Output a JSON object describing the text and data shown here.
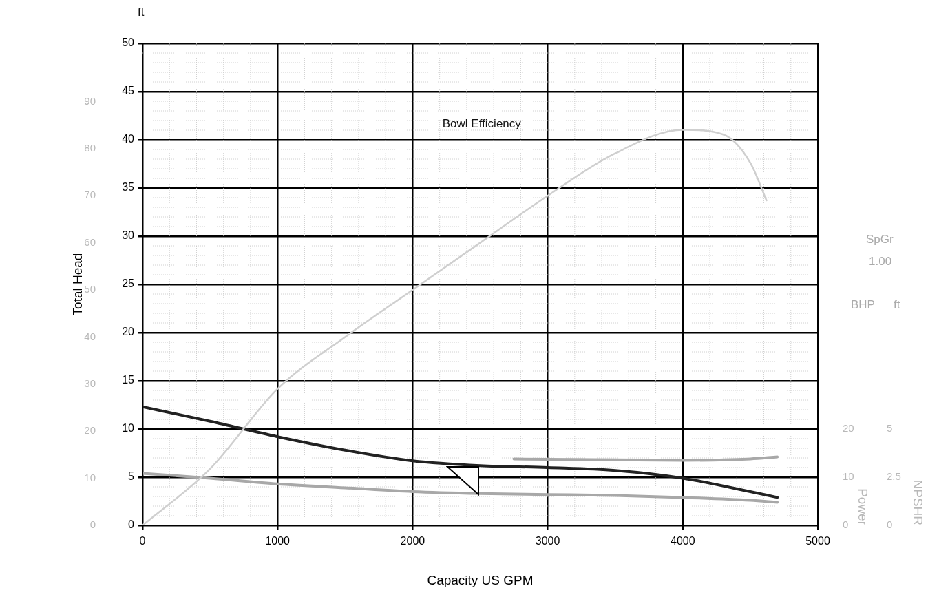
{
  "chart_data": [
    {
      "type": "line",
      "xlabel": "Capacity US GPM",
      "ylabel": "Total Head",
      "y2label": "Power",
      "y3label": "NPSHR",
      "xlim": [
        0,
        5000
      ],
      "xticks": [
        0,
        1000,
        2000,
        3000,
        4000,
        5000
      ],
      "ylim": [
        0,
        50
      ],
      "yticks": [
        0,
        5,
        10,
        15,
        20,
        25,
        30,
        35,
        40,
        45,
        50
      ],
      "y2lim": [
        0,
        100
      ],
      "y2ticks": [
        0,
        10,
        20
      ],
      "y3lim": [
        0,
        25
      ],
      "y3ticks": [
        0,
        2.5,
        5
      ],
      "grid": true,
      "legend": false,
      "marker": "none",
      "annotations": [
        "ft",
        "SpGr",
        "1.00",
        "BHP",
        "ft"
      ],
      "series": [
        {
          "color": "#222222",
          "x": [
            0,
            500,
            1000,
            1500,
            2000,
            2500,
            3000,
            3500,
            4000,
            4500,
            4700
          ],
          "values": [
            12.3,
            10.8,
            9.2,
            7.8,
            6.7,
            6.2,
            6.0,
            5.7,
            4.9,
            3.5,
            2.9
          ]
        },
        {
          "color": "#a8a8a8",
          "axis": "y2",
          "x": [
            2750,
            3000,
            3500,
            4000,
            4500,
            4700
          ],
          "values": [
            13.8,
            13.7,
            13.6,
            13.5,
            13.8,
            14.2
          ]
        },
        {
          "color": "#a8a8a8",
          "axis": "y3",
          "x": [
            0,
            500,
            1000,
            1500,
            2000,
            2500,
            3000,
            3500,
            4000,
            4500,
            4700
          ],
          "values": [
            2.7,
            2.45,
            2.15,
            1.95,
            1.75,
            1.65,
            1.6,
            1.55,
            1.45,
            1.3,
            1.2
          ]
        }
      ]
    },
    {
      "type": "line",
      "xlim": [
        0,
        5000
      ],
      "ylim": [
        0,
        100
      ],
      "yticks": [
        0,
        10,
        20,
        30,
        40,
        50,
        60,
        70,
        80,
        90
      ],
      "tick_labels": "y",
      "legend": false,
      "series": [
        {
          "name": "Bowl Efficiency",
          "color": "#cfcfcf",
          "x": [
            0,
            500,
            1000,
            1500,
            2000,
            2500,
            3000,
            3500,
            4000,
            4300,
            4500,
            4620
          ],
          "values": [
            0,
            12,
            29,
            40,
            50,
            60,
            70,
            79,
            84,
            83,
            77,
            69
          ]
        }
      ]
    }
  ]
}
